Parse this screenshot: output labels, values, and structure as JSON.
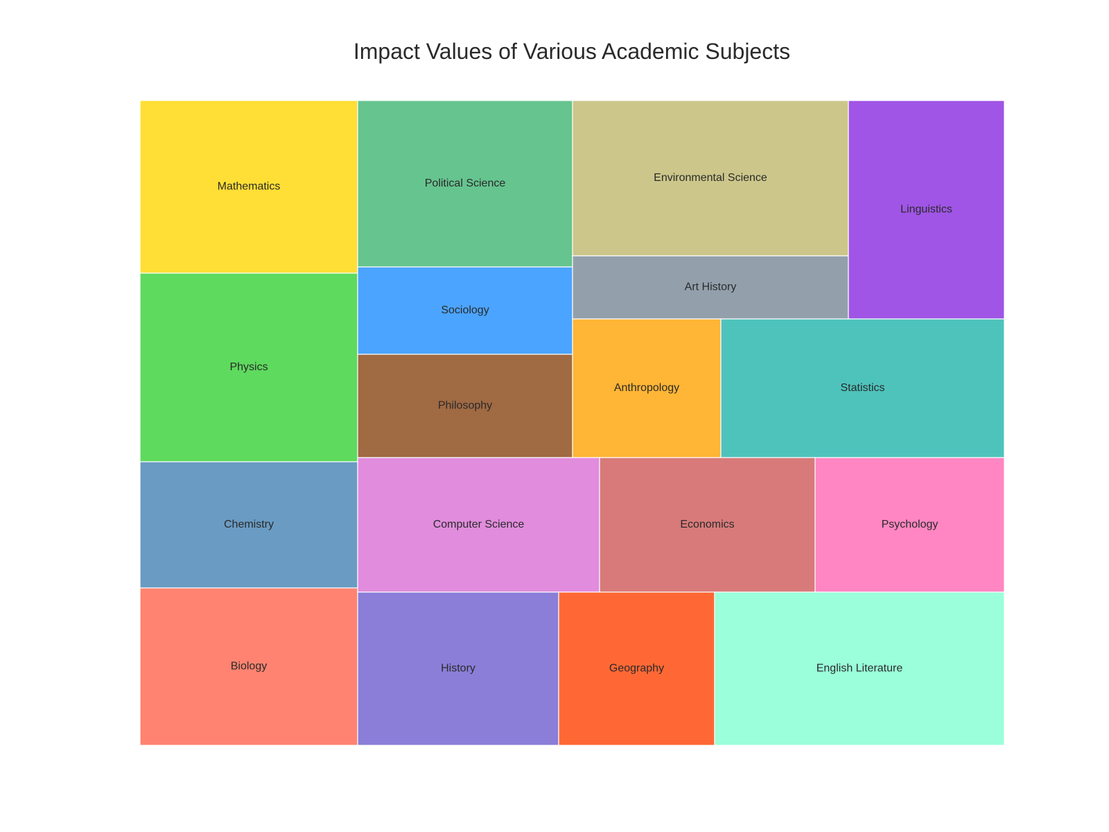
{
  "chart_data": {
    "type": "treemap",
    "title": "Impact Values of Various Academic Subjects",
    "items": [
      {
        "label": "Mathematics",
        "value": 92,
        "color": "#FFDF35"
      },
      {
        "label": "Physics",
        "value": 101,
        "color": "#5EDA5E"
      },
      {
        "label": "Chemistry",
        "value": 68,
        "color": "#6A9BC3"
      },
      {
        "label": "Biology",
        "value": 84,
        "color": "#FF8370"
      },
      {
        "label": "Political Science",
        "value": 89,
        "color": "#66C48F"
      },
      {
        "label": "Sociology",
        "value": 46,
        "color": "#4BA4FF"
      },
      {
        "label": "Philosophy",
        "value": 55,
        "color": "#A06A43"
      },
      {
        "label": "Environmental Science",
        "value": 106,
        "color": "#CCC68A"
      },
      {
        "label": "Art History",
        "value": 42,
        "color": "#93A0AC"
      },
      {
        "label": "Linguistics",
        "value": 85,
        "color": "#A055E6"
      },
      {
        "label": "Anthropology",
        "value": 51,
        "color": "#FFB535"
      },
      {
        "label": "Statistics",
        "value": 98,
        "color": "#4EC3BC"
      },
      {
        "label": "Computer Science",
        "value": 81,
        "color": "#E18CDD"
      },
      {
        "label": "Economics",
        "value": 72,
        "color": "#D87A7A"
      },
      {
        "label": "Psychology",
        "value": 64,
        "color": "#FF86C2"
      },
      {
        "label": "History",
        "value": 77,
        "color": "#8A7ED8"
      },
      {
        "label": "Geography",
        "value": 60,
        "color": "#FF6835"
      },
      {
        "label": "English Literature",
        "value": 112,
        "color": "#9AFFDA"
      }
    ]
  }
}
